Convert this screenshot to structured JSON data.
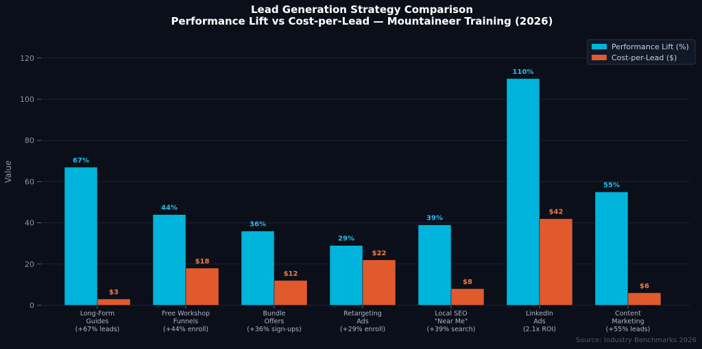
{
  "colors": {
    "background": "#0b0f19",
    "performance": "#00b4dc",
    "cost": "#e05a2e",
    "perf_label": "#1cc2ec",
    "cost_label": "#f07a45",
    "grid": "#1c2433"
  },
  "chart_data": {
    "type": "bar",
    "title": "Lead Generation Strategy Comparison",
    "subtitle": "Performance Lift vs Cost-per-Lead — Mountaineer Training (2026)",
    "xlabel": "",
    "ylabel": "Value",
    "ylim": [
      0,
      130
    ],
    "yticks": [
      0,
      20,
      40,
      60,
      80,
      100,
      120
    ],
    "grid": true,
    "legend_position": "top-right",
    "categories": [
      [
        "Long-Form",
        "Guides",
        "(+67% leads)"
      ],
      [
        "Free Workshop",
        "Funnels",
        "(+44% enroll)"
      ],
      [
        "Bundle",
        "Offers",
        "(+36% sign-ups)"
      ],
      [
        "Retargeting",
        "Ads",
        "(+29% enroll)"
      ],
      [
        "Local SEO",
        "\"Near Me\"",
        "(+39% search)"
      ],
      [
        "LinkedIn",
        "Ads",
        "(2.1x ROI)"
      ],
      [
        "Content",
        "Marketing",
        "(+55% leads)"
      ]
    ],
    "series": [
      {
        "name": "Performance Lift (%)",
        "values": [
          67,
          44,
          36,
          29,
          39,
          110,
          55
        ],
        "labels": [
          "67%",
          "44%",
          "36%",
          "29%",
          "39%",
          "110%",
          "55%"
        ]
      },
      {
        "name": "Cost-per-Lead ($)",
        "values": [
          3,
          18,
          12,
          22,
          8,
          42,
          6
        ],
        "labels": [
          "$3",
          "$18",
          "$12",
          "$22",
          "$8",
          "$42",
          "$6"
        ]
      }
    ],
    "source": "Source: Industry Benchmarks 2026"
  }
}
